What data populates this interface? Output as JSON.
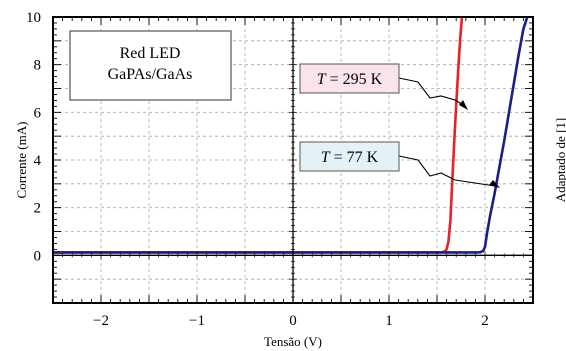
{
  "chart_data": {
    "type": "line",
    "title": "",
    "xlabel": "Tensão (V)",
    "ylabel": "Corrente (mA)",
    "xlim": [
      -2.5,
      2.5
    ],
    "ylim": [
      -2,
      10
    ],
    "x_ticks": [
      "−2",
      "−1",
      "0",
      "1",
      "2"
    ],
    "y_ticks": [
      "0",
      "2",
      "4",
      "6",
      "8",
      "10"
    ],
    "grid": true,
    "box_label": [
      "Red LED",
      "GaPAs/GaAs"
    ],
    "side_note": "Adaptado de [1]",
    "series": [
      {
        "name": "T = 295 K",
        "label_prefix": "T",
        "label_suffix": " = 295 K",
        "color": "#e8202a",
        "label_bg": "#fbe4e9",
        "x": [
          -2.5,
          1.5,
          1.55,
          1.58,
          1.6,
          1.62,
          1.64,
          1.66,
          1.68,
          1.7,
          1.72,
          1.74,
          1.76
        ],
        "y": [
          0.12,
          0.12,
          0.13,
          0.16,
          0.25,
          0.6,
          1.5,
          3.2,
          4.8,
          6.3,
          7.7,
          9.0,
          10.0
        ]
      },
      {
        "name": "T = 77 K",
        "label_prefix": "T",
        "label_suffix": " = 77 K",
        "color": "#1c1c8a",
        "label_bg": "#e4f2f8",
        "x": [
          -2.5,
          1.9,
          1.95,
          1.98,
          2.0,
          2.02,
          2.05,
          2.1,
          2.15,
          2.2,
          2.25,
          2.3,
          2.35,
          2.4,
          2.44
        ],
        "y": [
          0.12,
          0.12,
          0.13,
          0.18,
          0.35,
          0.9,
          1.6,
          2.6,
          3.7,
          4.8,
          6.0,
          7.2,
          8.4,
          9.5,
          10.0
        ]
      }
    ]
  }
}
